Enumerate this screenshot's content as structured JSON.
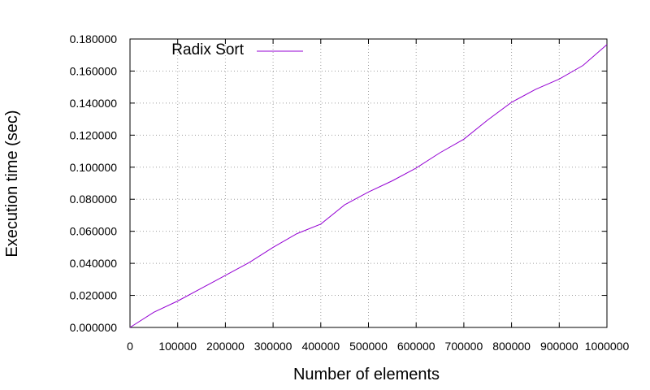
{
  "chart_data": {
    "type": "line",
    "title": "",
    "xlabel": "Number of elements",
    "ylabel": "Execution time (sec)",
    "xlim": [
      0,
      1000000
    ],
    "ylim": [
      0,
      0.18
    ],
    "grid": true,
    "legend_position": "top-left",
    "x_ticks": [
      "0",
      "100000",
      "200000",
      "300000",
      "400000",
      "500000",
      "600000",
      "700000",
      "800000",
      "900000",
      "1000000"
    ],
    "y_ticks": [
      "0.000000",
      "0.020000",
      "0.040000",
      "0.060000",
      "0.080000",
      "0.100000",
      "0.120000",
      "0.140000",
      "0.160000",
      "0.180000"
    ],
    "series": [
      {
        "name": "Radix Sort",
        "color": "#9400d3",
        "x": [
          0,
          50000,
          100000,
          150000,
          200000,
          250000,
          300000,
          350000,
          400000,
          450000,
          500000,
          550000,
          600000,
          650000,
          700000,
          750000,
          800000,
          850000,
          900000,
          950000,
          1000000
        ],
        "y": [
          0.0,
          0.0095,
          0.0165,
          0.0245,
          0.0325,
          0.0405,
          0.05,
          0.0585,
          0.0645,
          0.0765,
          0.0845,
          0.0915,
          0.0995,
          0.109,
          0.1175,
          0.1295,
          0.1405,
          0.1485,
          0.155,
          0.1635,
          0.1765
        ]
      }
    ]
  }
}
